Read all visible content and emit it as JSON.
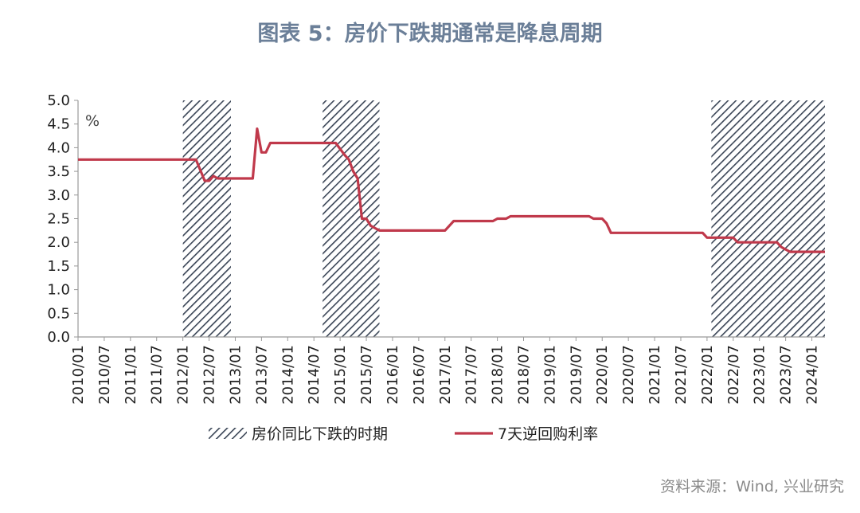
{
  "title": "图表 5：房价下跌期通常是降息周期",
  "source": "资料来源：Wind, 兴业研究",
  "colors": {
    "line": "#c0394b",
    "hatch": "#3a4556",
    "title": "#6b7f98"
  },
  "chart_data": {
    "type": "line",
    "ylabel": "%",
    "ylim": [
      0,
      5
    ],
    "yticks": [
      "0.0",
      "0.5",
      "1.0",
      "1.5",
      "2.0",
      "2.5",
      "3.0",
      "3.5",
      "4.0",
      "4.5",
      "5.0"
    ],
    "xlim": [
      "2010-01",
      "2024-04"
    ],
    "xticks": [
      "2010/01",
      "2010/07",
      "2011/01",
      "2011/07",
      "2012/01",
      "2012/07",
      "2013/01",
      "2013/07",
      "2014/01",
      "2014/07",
      "2015/01",
      "2015/07",
      "2016/01",
      "2016/07",
      "2017/01",
      "2017/07",
      "2018/01",
      "2018/07",
      "2019/01",
      "2019/07",
      "2020/01",
      "2020/07",
      "2021/01",
      "2021/07",
      "2022/01",
      "2022/07",
      "2023/01",
      "2023/07",
      "2024/01"
    ],
    "legend": [
      "房价同比下跌的时期",
      "7天逆回购利率"
    ],
    "legend_placement": "bottom",
    "shaded_periods": [
      {
        "name": "房价同比下跌的时期",
        "start": "2012-01",
        "end": "2012-12"
      },
      {
        "name": "房价同比下跌的时期",
        "start": "2014-09",
        "end": "2015-10"
      },
      {
        "name": "房价同比下跌的时期",
        "start": "2022-02",
        "end": "2024-04"
      }
    ],
    "series": [
      {
        "name": "7天逆回购利率",
        "points": [
          [
            "2010-01",
            3.75
          ],
          [
            "2012-04",
            3.75
          ],
          [
            "2012-06",
            3.3
          ],
          [
            "2012-07",
            3.3
          ],
          [
            "2012-08",
            3.4
          ],
          [
            "2012-09",
            3.35
          ],
          [
            "2013-01",
            3.35
          ],
          [
            "2013-05",
            3.35
          ],
          [
            "2013-06",
            4.4
          ],
          [
            "2013-07",
            3.9
          ],
          [
            "2013-08",
            3.9
          ],
          [
            "2013-09",
            4.1
          ],
          [
            "2014-01",
            4.1
          ],
          [
            "2014-12",
            4.1
          ],
          [
            "2015-02",
            3.85
          ],
          [
            "2015-03",
            3.75
          ],
          [
            "2015-04",
            3.5
          ],
          [
            "2015-05",
            3.35
          ],
          [
            "2015-06",
            2.5
          ],
          [
            "2015-07",
            2.5
          ],
          [
            "2015-08",
            2.35
          ],
          [
            "2015-10",
            2.25
          ],
          [
            "2017-01",
            2.25
          ],
          [
            "2017-02",
            2.35
          ],
          [
            "2017-03",
            2.45
          ],
          [
            "2017-12",
            2.45
          ],
          [
            "2018-01",
            2.5
          ],
          [
            "2018-03",
            2.5
          ],
          [
            "2018-04",
            2.55
          ],
          [
            "2019-10",
            2.55
          ],
          [
            "2019-11",
            2.5
          ],
          [
            "2020-01",
            2.5
          ],
          [
            "2020-02",
            2.4
          ],
          [
            "2020-03",
            2.2
          ],
          [
            "2021-12",
            2.2
          ],
          [
            "2022-01",
            2.1
          ],
          [
            "2022-07",
            2.1
          ],
          [
            "2022-08",
            2.0
          ],
          [
            "2023-05",
            2.0
          ],
          [
            "2023-06",
            1.9
          ],
          [
            "2023-08",
            1.8
          ],
          [
            "2024-04",
            1.8
          ]
        ]
      }
    ]
  }
}
